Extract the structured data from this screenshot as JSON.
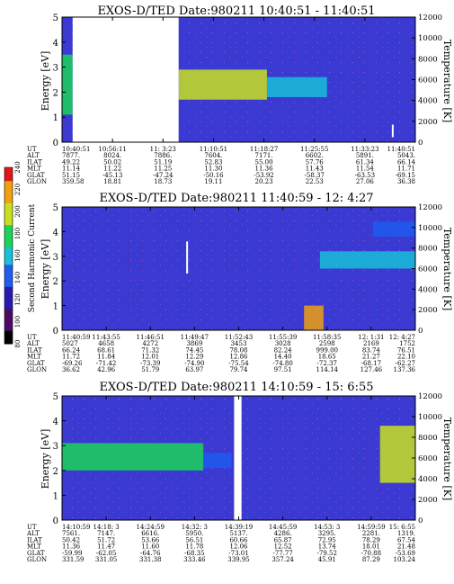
{
  "chart_data": [
    {
      "type": "heatmap",
      "title": "EXOS-D/TED   Date:980211  10:40:51 - 11:40:51",
      "ylabel": "Energy [eV]",
      "y2label": "Temperature [K]",
      "ylim": [
        0,
        5
      ],
      "y2lim": [
        0,
        12000
      ],
      "yticks": [
        "0",
        "1",
        "2",
        "3",
        "4",
        "5"
      ],
      "y2ticks": [
        "0",
        "2000",
        "4000",
        "6000",
        "8000",
        "10000",
        "12000"
      ],
      "x_ticks": [
        "10:40:51",
        "10:56:11",
        "11: 3:23",
        "11:10:51",
        "11:18:27",
        "11:25:55",
        "11:33:23",
        "11:40:51"
      ],
      "aux_rows": [
        {
          "name": "UT",
          "values": [
            "10:40:51",
            "10:56:11",
            "11: 3:23",
            "11:10:51",
            "11:18:27",
            "11:25:55",
            "11:33:23",
            "11:40:51"
          ]
        },
        {
          "name": "ALT",
          "values": [
            "7877.",
            "8024.",
            "7886.",
            "7604.",
            "7171.",
            "6602.",
            "5891.",
            "5043."
          ]
        },
        {
          "name": "ILAT",
          "values": [
            "49.22",
            "50.02",
            "51.19",
            "52.83",
            "55.00",
            "57.76",
            "61.34",
            "66.14"
          ]
        },
        {
          "name": "MLT",
          "values": [
            "11.14",
            "11.22",
            "11.25",
            "11.30",
            "11.36",
            "11.43",
            "11.54",
            "11.71"
          ]
        },
        {
          "name": "GLAT",
          "values": [
            "51.15",
            "-45.13",
            "-47.24",
            "-50.16",
            "-53.92",
            "-58.37",
            "-63.53",
            "-69.15"
          ]
        },
        {
          "name": "GLON",
          "values": [
            "359.58",
            "18.81",
            "18.73",
            "19.11",
            "20.23",
            "22.53",
            "27.06",
            "36.38"
          ]
        }
      ],
      "data_gaps": [
        [
          0.03,
          0.33
        ]
      ],
      "bands": [
        {
          "x": [
            0.0,
            0.03
          ],
          "y": [
            1.1,
            3.5
          ],
          "level": 0.6
        },
        {
          "x": [
            0.33,
            0.58
          ],
          "y": [
            1.7,
            2.9
          ],
          "level": 0.75
        },
        {
          "x": [
            0.58,
            0.75
          ],
          "y": [
            1.8,
            2.6
          ],
          "level": 0.45
        }
      ],
      "markers": [
        {
          "x": 0.936,
          "y": [
            0.2,
            0.7
          ],
          "color": "#ffffff"
        }
      ]
    },
    {
      "type": "heatmap",
      "title": "EXOS-D/TED   Date:980211  11:40:59 - 12: 4:27",
      "ylabel": "Energy [eV]",
      "y2label": "Temperature [K]",
      "ylim": [
        0,
        5
      ],
      "y2lim": [
        0,
        12000
      ],
      "yticks": [
        "0",
        "1",
        "2",
        "3",
        "4",
        "5"
      ],
      "y2ticks": [
        "0",
        "2000",
        "4000",
        "6000",
        "8000",
        "10000",
        "12000"
      ],
      "x_ticks": [
        "11:40:59",
        "11:43:55",
        "11:46:51",
        "11:49:47",
        "11:52:43",
        "11:55:39",
        "11:58:35",
        "12: 1:31",
        "12: 4:27"
      ],
      "aux_rows": [
        {
          "name": "UT",
          "values": [
            "11:40:59",
            "11:43:55",
            "11:46:51",
            "11:49:47",
            "11:52:43",
            "11:55:39",
            "11:58:35",
            "12: 1:31",
            "12: 4:27"
          ]
        },
        {
          "name": "ALT",
          "values": [
            "5027",
            "4658",
            "4272",
            "3869",
            "3453",
            "3028",
            "2598",
            "2169",
            "1752"
          ]
        },
        {
          "name": "ILAT",
          "values": [
            "66.24",
            "68.61",
            "71.32",
            "74.45",
            "78.08",
            "82.24",
            "999.00",
            "83.74",
            "76.51"
          ]
        },
        {
          "name": "MLT",
          "values": [
            "11.72",
            "11.84",
            "12.01",
            "12.29",
            "12.86",
            "14.40",
            "18.65",
            "21.27",
            "22.10"
          ]
        },
        {
          "name": "GLAT",
          "values": [
            "-69.26",
            "-71.42",
            "-73.39",
            "-74.90",
            "-75.54",
            "-74.80",
            "-72.37",
            "-68.17",
            "-62.27"
          ]
        },
        {
          "name": "GLON",
          "values": [
            "36.62",
            "42.96",
            "51.79",
            "63.97",
            "79.74",
            "97.51",
            "114.14",
            "127.46",
            "137.36"
          ]
        }
      ],
      "data_gaps": [],
      "bands": [
        {
          "x": [
            0.685,
            0.74
          ],
          "y": [
            0.0,
            1.0
          ],
          "level": 0.9
        },
        {
          "x": [
            0.73,
            1.0
          ],
          "y": [
            2.5,
            3.2
          ],
          "level": 0.55
        },
        {
          "x": [
            0.88,
            1.0
          ],
          "y": [
            3.8,
            4.4
          ],
          "level": 0.4
        }
      ],
      "markers": [
        {
          "x": 0.354,
          "y": [
            2.3,
            3.6
          ],
          "color": "#ffffff"
        }
      ]
    },
    {
      "type": "heatmap",
      "title": "EXOS-D/TED   Date:980211  14:10:59 - 15: 6:55",
      "ylabel": "Energy [eV]",
      "y2label": "Temperature [K]",
      "ylim": [
        0,
        5
      ],
      "y2lim": [
        0,
        12000
      ],
      "yticks": [
        "0",
        "1",
        "2",
        "3",
        "4",
        "5"
      ],
      "y2ticks": [
        "0",
        "2000",
        "4000",
        "6000",
        "8000",
        "10000",
        "12000"
      ],
      "x_ticks": [
        "14:10:59",
        "14:18: 3",
        "14:24:59",
        "14:32: 3",
        "14:39:19",
        "14:45:59",
        "14:53: 3",
        "14:59:59",
        "15: 6:55"
      ],
      "aux_rows": [
        {
          "name": "UT",
          "values": [
            "14:10:59",
            "14:18: 3",
            "14:24:59",
            "14:32: 3",
            "14:39:19",
            "14:45:59",
            "14:53: 3",
            "14:59:59",
            "15: 6:55"
          ]
        },
        {
          "name": "ALT",
          "values": [
            "7561.",
            "7147.",
            "6616.",
            "5950.",
            "5137.",
            "4286.",
            "3295.",
            "2281.",
            "1319."
          ]
        },
        {
          "name": "ILAT",
          "values": [
            "50.42",
            "51.72",
            "53.66",
            "56.51",
            "60.66",
            "65.87",
            "72.95",
            "78.29",
            "67.54"
          ]
        },
        {
          "name": "MLT",
          "values": [
            "11.36",
            "11.47",
            "11.60",
            "11.78",
            "12.06",
            "12.52",
            "13.74",
            "18.01",
            "21.48"
          ]
        },
        {
          "name": "GLAT",
          "values": [
            "-59.99",
            "-62.05",
            "-64.76",
            "-68.35",
            "-73.01",
            "-77.77",
            "-79.52",
            "-70.88",
            "-53.69"
          ]
        },
        {
          "name": "GLON",
          "values": [
            "331.59",
            "331.05",
            "331.38",
            "333.46",
            "339.95",
            "357.24",
            "45.91",
            "87.29",
            "103.24"
          ]
        }
      ],
      "data_gaps": [
        [
          0.487,
          0.508
        ]
      ],
      "bands": [
        {
          "x": [
            0.0,
            0.4
          ],
          "y": [
            2.0,
            3.1
          ],
          "level": 0.6
        },
        {
          "x": [
            0.4,
            0.48
          ],
          "y": [
            2.1,
            2.7
          ],
          "level": 0.35
        },
        {
          "x": [
            0.9,
            1.0
          ],
          "y": [
            1.5,
            3.8
          ],
          "level": 0.8
        }
      ],
      "markers": []
    }
  ],
  "colorbar": {
    "label": "Second Harmonic Current",
    "min": 80,
    "max": 240,
    "ticks": [
      "80",
      "100",
      "120",
      "140",
      "160",
      "180",
      "200",
      "220",
      "240"
    ],
    "colors": [
      "#000000",
      "#4b0a64",
      "#2a1ab4",
      "#1f5cf0",
      "#18c0d8",
      "#1bd35a",
      "#c8e020",
      "#f0a010",
      "#e01818"
    ]
  },
  "colors": {
    "background_level": "#3a3ad2",
    "gap": "#ffffff"
  }
}
